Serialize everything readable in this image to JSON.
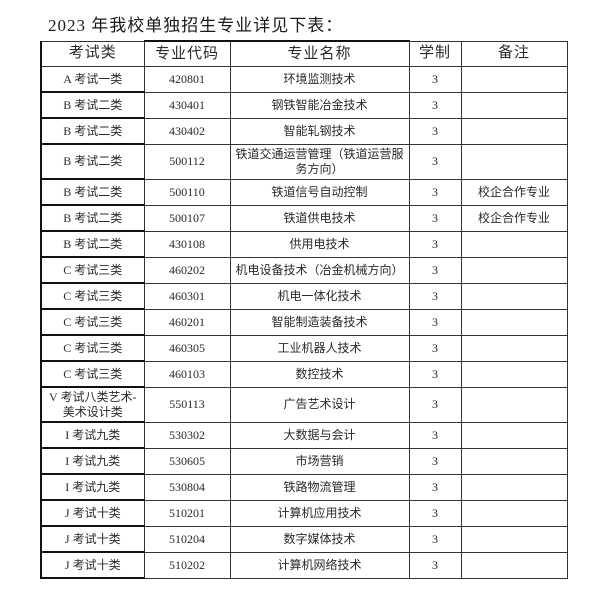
{
  "document": {
    "title": "2023 年我校单独招生专业详见下表：",
    "table": {
      "headers": [
        "考试类",
        "专业代码",
        "专业名称",
        "学制",
        "备注"
      ],
      "rows": [
        [
          "A 考试一类",
          "420801",
          "环境监测技术",
          "3",
          ""
        ],
        [
          "B 考试二类",
          "430401",
          "钢铁智能冶金技术",
          "3",
          ""
        ],
        [
          "B 考试二类",
          "430402",
          "智能轧钢技术",
          "3",
          ""
        ],
        [
          "B 考试二类",
          "500112",
          "铁道交通运营管理（铁道运营服务方向）",
          "3",
          ""
        ],
        [
          "B 考试二类",
          "500110",
          "铁道信号自动控制",
          "3",
          "校企合作专业"
        ],
        [
          "B 考试二类",
          "500107",
          "铁道供电技术",
          "3",
          "校企合作专业"
        ],
        [
          "B 考试二类",
          "430108",
          "供用电技术",
          "3",
          ""
        ],
        [
          "C 考试三类",
          "460202",
          "机电设备技术（冶金机械方向）",
          "3",
          ""
        ],
        [
          "C 考试三类",
          "460301",
          "机电一体化技术",
          "3",
          ""
        ],
        [
          "C 考试三类",
          "460201",
          "智能制造装备技术",
          "3",
          ""
        ],
        [
          "C 考试三类",
          "460305",
          "工业机器人技术",
          "3",
          ""
        ],
        [
          "C 考试三类",
          "460103",
          "数控技术",
          "3",
          ""
        ],
        [
          "V 考试八类艺术-美术设计类",
          "550113",
          "广告艺术设计",
          "3",
          ""
        ],
        [
          "I 考试九类",
          "530302",
          "大数据与会计",
          "3",
          ""
        ],
        [
          "I 考试九类",
          "530605",
          "市场营销",
          "3",
          ""
        ],
        [
          "I 考试九类",
          "530804",
          "铁路物流管理",
          "3",
          ""
        ],
        [
          "J 考试十类",
          "510201",
          "计算机应用技术",
          "3",
          ""
        ],
        [
          "J 考试十类",
          "510204",
          "数字媒体技术",
          "3",
          ""
        ],
        [
          "J 考试十类",
          "510202",
          "计算机网络技术",
          "3",
          ""
        ]
      ]
    }
  }
}
